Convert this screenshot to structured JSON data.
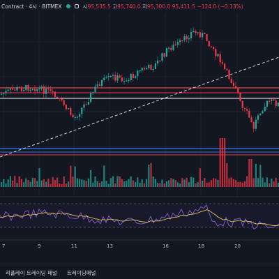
{
  "header": {
    "title": "Contract · 4시 · BITMEX",
    "ohlc": [
      {
        "k": "시",
        "v": "95,535.5"
      },
      {
        "k": "고",
        "v": "95,740.0"
      },
      {
        "k": "저",
        "v": "95,300.0"
      },
      {
        "k": "",
        "v": "95,411.5"
      },
      {
        "k": "",
        "v": "−124.0 (−0.13%)"
      }
    ]
  },
  "x_axis": {
    "ticks": [
      "7",
      "9",
      "11",
      "13",
      "16",
      "18",
      "20"
    ]
  },
  "footer": {
    "tabs": [
      "리플레이 트레이딩 패널",
      "트레이딩패널"
    ]
  },
  "colors": {
    "background": "#131722",
    "up": "#26a69a",
    "down": "#f23645",
    "support_line": "#3179f5",
    "resistance_line": "#f23645",
    "white_line": "#ffffff",
    "rsi_line": "#7e57c2",
    "rsi_ma": "#d6b45a"
  }
}
